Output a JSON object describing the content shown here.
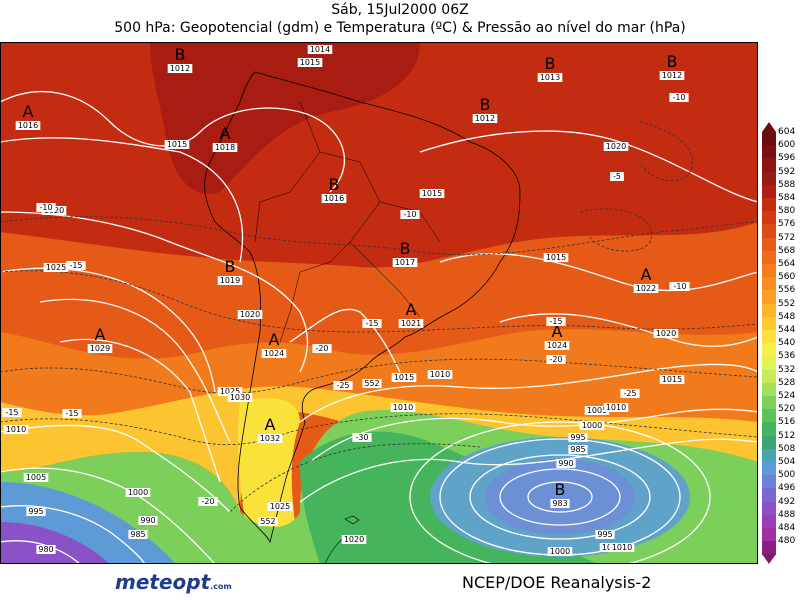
{
  "header": {
    "line1": "Sáb, 15Jul2000 06Z",
    "line2": "500 hPa: Geopotencial (gdm) e Temperatura (ºC) & Pressão ao nível do mar (hPa)"
  },
  "footer": {
    "logo_text": "meteopt",
    "logo_suffix": ".com",
    "credit": "NCEP/DOE Reanalysis-2"
  },
  "colorbar": {
    "labels": [
      "604",
      "600",
      "596",
      "592",
      "588",
      "584",
      "580",
      "576",
      "572",
      "568",
      "564",
      "560",
      "556",
      "552",
      "548",
      "544",
      "540",
      "536",
      "532",
      "528",
      "524",
      "520",
      "516",
      "512",
      "508",
      "504",
      "500",
      "496",
      "492",
      "488",
      "484",
      "480"
    ],
    "colors": [
      "#6b0d10",
      "#7a1010",
      "#8b1414",
      "#9c1a14",
      "#b01f12",
      "#c42c12",
      "#d23a14",
      "#de4b16",
      "#e85c18",
      "#ef6c1a",
      "#f47d1c",
      "#f88e20",
      "#fb9f26",
      "#fcb52c",
      "#fdca33",
      "#fde03a",
      "#f7ef45",
      "#e2f252",
      "#c4eb5a",
      "#a4e05a",
      "#7dd05a",
      "#5dc25a",
      "#46b45c",
      "#3ca673",
      "#4aa5b3",
      "#5d9ad6",
      "#6c82d8",
      "#7a68d2",
      "#8a52c6",
      "#9b3fb6",
      "#a22fa0",
      "#8a1f80"
    ],
    "tip_top_color": "#6b0d10",
    "tip_bottom_color": "#7a1a70"
  },
  "map": {
    "pressure_centers": [
      {
        "letter": "A",
        "value": "1016"
      },
      {
        "letter": "A",
        "value": "1018"
      },
      {
        "letter": "B",
        "value": "1012"
      },
      {
        "letter": "B",
        "value": "1016"
      },
      {
        "letter": "B",
        "value": "1013"
      },
      {
        "letter": "B",
        "value": "1012"
      },
      {
        "letter": "B",
        "value": "1012"
      },
      {
        "letter": "B",
        "value": "1019"
      },
      {
        "letter": "B",
        "value": "1017"
      },
      {
        "letter": "A",
        "value": "1029"
      },
      {
        "letter": "A",
        "value": "1024"
      },
      {
        "letter": "A",
        "value": "1021"
      },
      {
        "letter": "A",
        "value": "1024"
      },
      {
        "letter": "A",
        "value": "1022"
      },
      {
        "letter": "A",
        "value": "1032"
      },
      {
        "letter": "B",
        "value": "983"
      }
    ],
    "isobar_labels": [
      "1014",
      "1015",
      "1015",
      "1015",
      "1020",
      "1025",
      "1020",
      "1025",
      "1030",
      "1020",
      "1025",
      "1015",
      "1010",
      "1010",
      "1020",
      "1015",
      "1010",
      "1005",
      "1000",
      "995",
      "990",
      "985",
      "980",
      "985",
      "990",
      "995",
      "1000",
      "1005",
      "1010",
      "1000",
      "1005",
      "1010",
      "995",
      "1000",
      "1015",
      "1020"
    ],
    "temperature_labels": [
      "-10",
      "-10",
      "-15",
      "-15",
      "-20",
      "-15",
      "-10",
      "-5",
      "-10",
      "-15",
      "-20",
      "-25",
      "-30",
      "-15",
      "-20",
      "-25",
      "-20",
      "-10"
    ],
    "geopotential_labels": [
      "552",
      "552"
    ]
  }
}
